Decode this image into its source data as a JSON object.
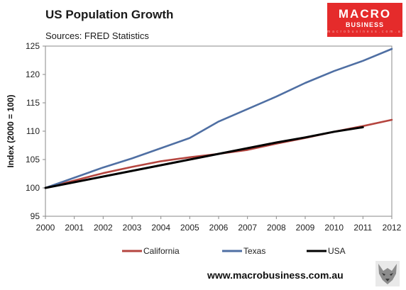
{
  "header": {
    "title": "US Population  Growth",
    "subtitle": "Sources: FRED Statistics"
  },
  "logo": {
    "line1": "MACRO",
    "line2": "BUSINESS",
    "tagline": "macrobusiness.com.au"
  },
  "footer": {
    "url": "www.macrobusiness.com.au",
    "badge_icon": "wolf-logo-icon"
  },
  "chart_data": {
    "type": "line",
    "title": "US Population  Growth",
    "subtitle": "Sources: FRED Statistics",
    "xlabel": "",
    "ylabel": "Index (2000 = 100)",
    "x": [
      2000,
      2001,
      2002,
      2003,
      2004,
      2005,
      2006,
      2007,
      2008,
      2009,
      2010,
      2011,
      2012
    ],
    "xlim": [
      2000,
      2012
    ],
    "ylim": [
      95,
      125
    ],
    "yticks": [
      95,
      100,
      105,
      110,
      115,
      120,
      125
    ],
    "grid": false,
    "legend": "bottom",
    "series": [
      {
        "name": "California",
        "color": "#b5453f",
        "values": [
          100,
          101.3,
          102.6,
          103.7,
          104.7,
          105.4,
          106.0,
          106.7,
          107.8,
          108.8,
          109.9,
          110.9,
          112.0
        ]
      },
      {
        "name": "Texas",
        "color": "#4f6fa3",
        "values": [
          100,
          101.8,
          103.6,
          105.2,
          107.0,
          108.8,
          111.7,
          113.9,
          116.1,
          118.5,
          120.6,
          122.4,
          124.5
        ]
      },
      {
        "name": "USA",
        "color": "#000000",
        "values": [
          100,
          101.0,
          102.0,
          103.0,
          104.0,
          105.0,
          106.0,
          107.0,
          108.0,
          108.9,
          109.9,
          110.7,
          null
        ]
      }
    ]
  }
}
